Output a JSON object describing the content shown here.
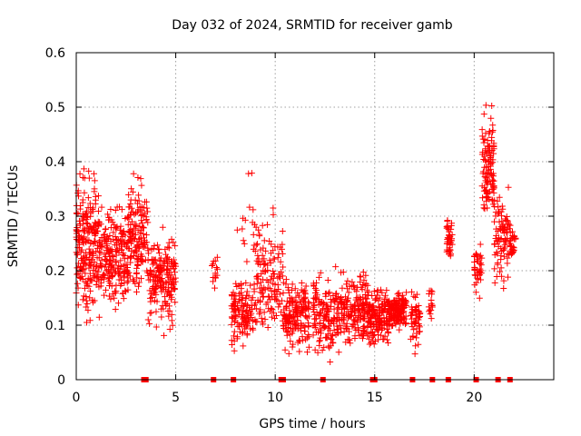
{
  "chart_data": {
    "type": "scatter",
    "title": "Day 032 of 2024, SRMTID for receiver gamb",
    "xlabel": "GPS time / hours",
    "ylabel": "SRMTID / TECUs",
    "xlim": [
      0,
      24
    ],
    "ylim": [
      0,
      0.6
    ],
    "xticks": [
      0,
      5,
      10,
      15,
      20
    ],
    "yticks": [
      0,
      0.1,
      0.2,
      0.3,
      0.4,
      0.5,
      0.6
    ],
    "xtick_labels": [
      "0",
      "5",
      "10",
      "15",
      "20"
    ],
    "ytick_labels": [
      "0",
      "0.1",
      "0.2",
      "0.3",
      "0.4",
      "0.5",
      "0.6"
    ],
    "grid": true,
    "marker": "plus",
    "color": "#ff0000",
    "zero_value_times": [
      3.4,
      3.5,
      6.9,
      7.9,
      10.3,
      10.4,
      12.4,
      14.9,
      15.0,
      16.9,
      17.9,
      18.7,
      20.1,
      21.2,
      21.8
    ],
    "clusters": [
      {
        "x": [
          0.0,
          1.2
        ],
        "y": [
          0.08,
          0.42
        ],
        "n": 230
      },
      {
        "x": [
          1.2,
          2.6
        ],
        "y": [
          0.1,
          0.34
        ],
        "n": 200
      },
      {
        "x": [
          2.6,
          3.6
        ],
        "y": [
          0.14,
          0.39
        ],
        "n": 150
      },
      {
        "x": [
          3.6,
          5.0
        ],
        "y": [
          0.07,
          0.3
        ],
        "n": 180
      },
      {
        "x": [
          6.8,
          7.1
        ],
        "y": [
          0.15,
          0.24
        ],
        "n": 14
      },
      {
        "x": [
          7.8,
          8.9
        ],
        "y": [
          0.04,
          0.2
        ],
        "n": 120
      },
      {
        "x": [
          8.0,
          9.5
        ],
        "y": [
          0.15,
          0.42
        ],
        "n": 18
      },
      {
        "x": [
          8.9,
          10.4
        ],
        "y": [
          0.04,
          0.33
        ],
        "n": 140
      },
      {
        "x": [
          10.4,
          11.7
        ],
        "y": [
          0.03,
          0.21
        ],
        "n": 170
      },
      {
        "x": [
          11.9,
          13.4
        ],
        "y": [
          0.02,
          0.22
        ],
        "n": 170
      },
      {
        "x": [
          13.4,
          14.6
        ],
        "y": [
          0.03,
          0.23
        ],
        "n": 150
      },
      {
        "x": [
          14.6,
          15.7
        ],
        "y": [
          0.05,
          0.18
        ],
        "n": 160
      },
      {
        "x": [
          15.7,
          16.6
        ],
        "y": [
          0.08,
          0.17
        ],
        "n": 150
      },
      {
        "x": [
          16.8,
          17.3
        ],
        "y": [
          0.04,
          0.18
        ],
        "n": 50
      },
      {
        "x": [
          17.7,
          17.9
        ],
        "y": [
          0.1,
          0.18
        ],
        "n": 16
      },
      {
        "x": [
          18.6,
          18.9
        ],
        "y": [
          0.2,
          0.32
        ],
        "n": 40
      },
      {
        "x": [
          20.0,
          20.4
        ],
        "y": [
          0.14,
          0.27
        ],
        "n": 40
      },
      {
        "x": [
          20.4,
          21.0
        ],
        "y": [
          0.27,
          0.52
        ],
        "n": 110
      },
      {
        "x": [
          21.0,
          21.8
        ],
        "y": [
          0.15,
          0.38
        ],
        "n": 90
      },
      {
        "x": [
          21.8,
          22.1
        ],
        "y": [
          0.2,
          0.3
        ],
        "n": 30
      }
    ]
  }
}
